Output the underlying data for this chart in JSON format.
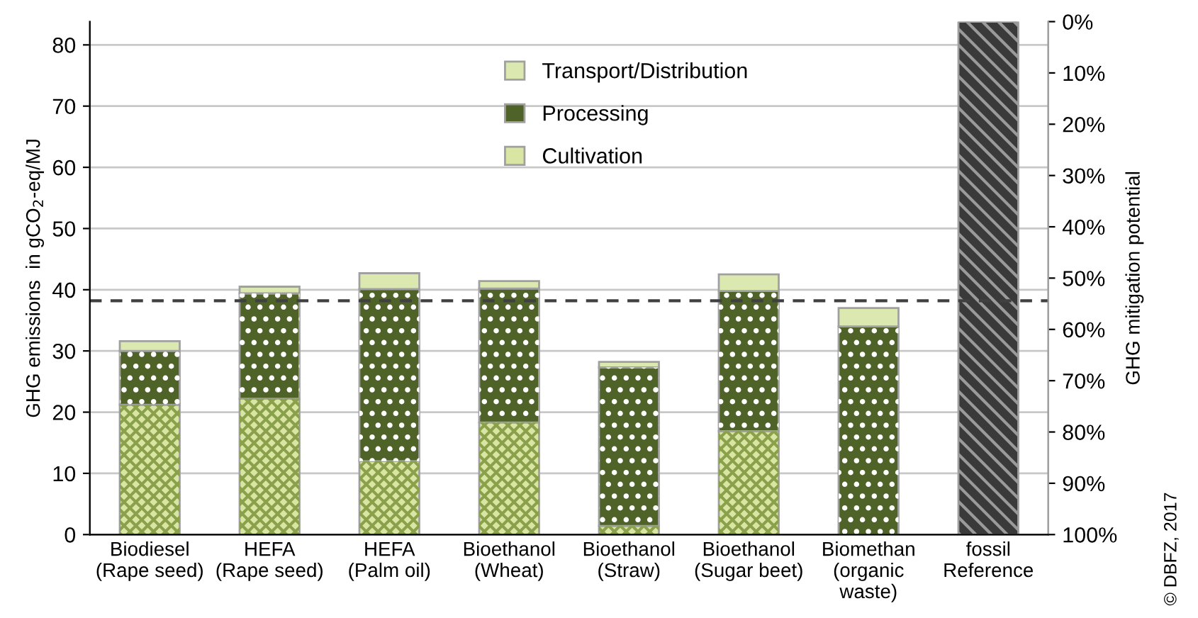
{
  "chart_data": {
    "type": "bar",
    "stacked": true,
    "ylabel": "GHG emissions  in gCO$_{2}$-eq/MJ",
    "y2label": "GHG mitigation potential",
    "categories": [
      "Biodiesel\n(Rape seed)",
      "HEFA\n(Rape seed)",
      "HEFA\n(Palm oil)",
      "Bioethanol\n(Wheat)",
      "Bioethanol\n(Straw)",
      "Bioethanol\n(Sugar beet)",
      "Biomethan\n(organic\nwaste)",
      "fossil\nReference"
    ],
    "series": [
      {
        "name": "Cultivation",
        "color": "#d9e6a3",
        "values": [
          21.2,
          22.2,
          12.0,
          18.3,
          1.4,
          16.9,
          0,
          null
        ]
      },
      {
        "name": "Processing",
        "color": "#4f6228",
        "values": [
          8.8,
          17.2,
          28.1,
          21.9,
          25.9,
          22.9,
          34.0,
          null
        ]
      },
      {
        "name": "Transport/Distribution",
        "color": "#dbe8b0",
        "values": [
          1.6,
          1.1,
          2.6,
          1.2,
          0.9,
          2.7,
          3.0,
          null
        ]
      },
      {
        "color": "#3a3a3a",
        "values": [
          null,
          null,
          null,
          null,
          null,
          null,
          null,
          83.8
        ]
      }
    ],
    "ylim": [
      0,
      83.8
    ],
    "yticks": [
      0,
      10,
      20,
      30,
      40,
      50,
      60,
      70,
      80
    ],
    "y2lim": [
      100,
      0
    ],
    "y2ticks": [
      {
        "value": 0,
        "label": "0%"
      },
      {
        "value": 10,
        "label": "10%"
      },
      {
        "value": 20,
        "label": "20%"
      },
      {
        "value": 30,
        "label": "30%"
      },
      {
        "value": 40,
        "label": "40%"
      },
      {
        "value": 50,
        "label": "50%"
      },
      {
        "value": 60,
        "label": "60%"
      },
      {
        "value": 70,
        "label": "70%"
      },
      {
        "value": 80,
        "label": "80%"
      },
      {
        "value": 90,
        "label": "90%"
      },
      {
        "value": 100,
        "label": "100%"
      }
    ],
    "ref_lines": [
      {
        "axis": "y",
        "value": 38.2,
        "color": "#404040",
        "line_style": "dashed"
      }
    ],
    "grid": "y",
    "legend": "top",
    "annotations": [
      "© DBFZ, 2017"
    ]
  }
}
